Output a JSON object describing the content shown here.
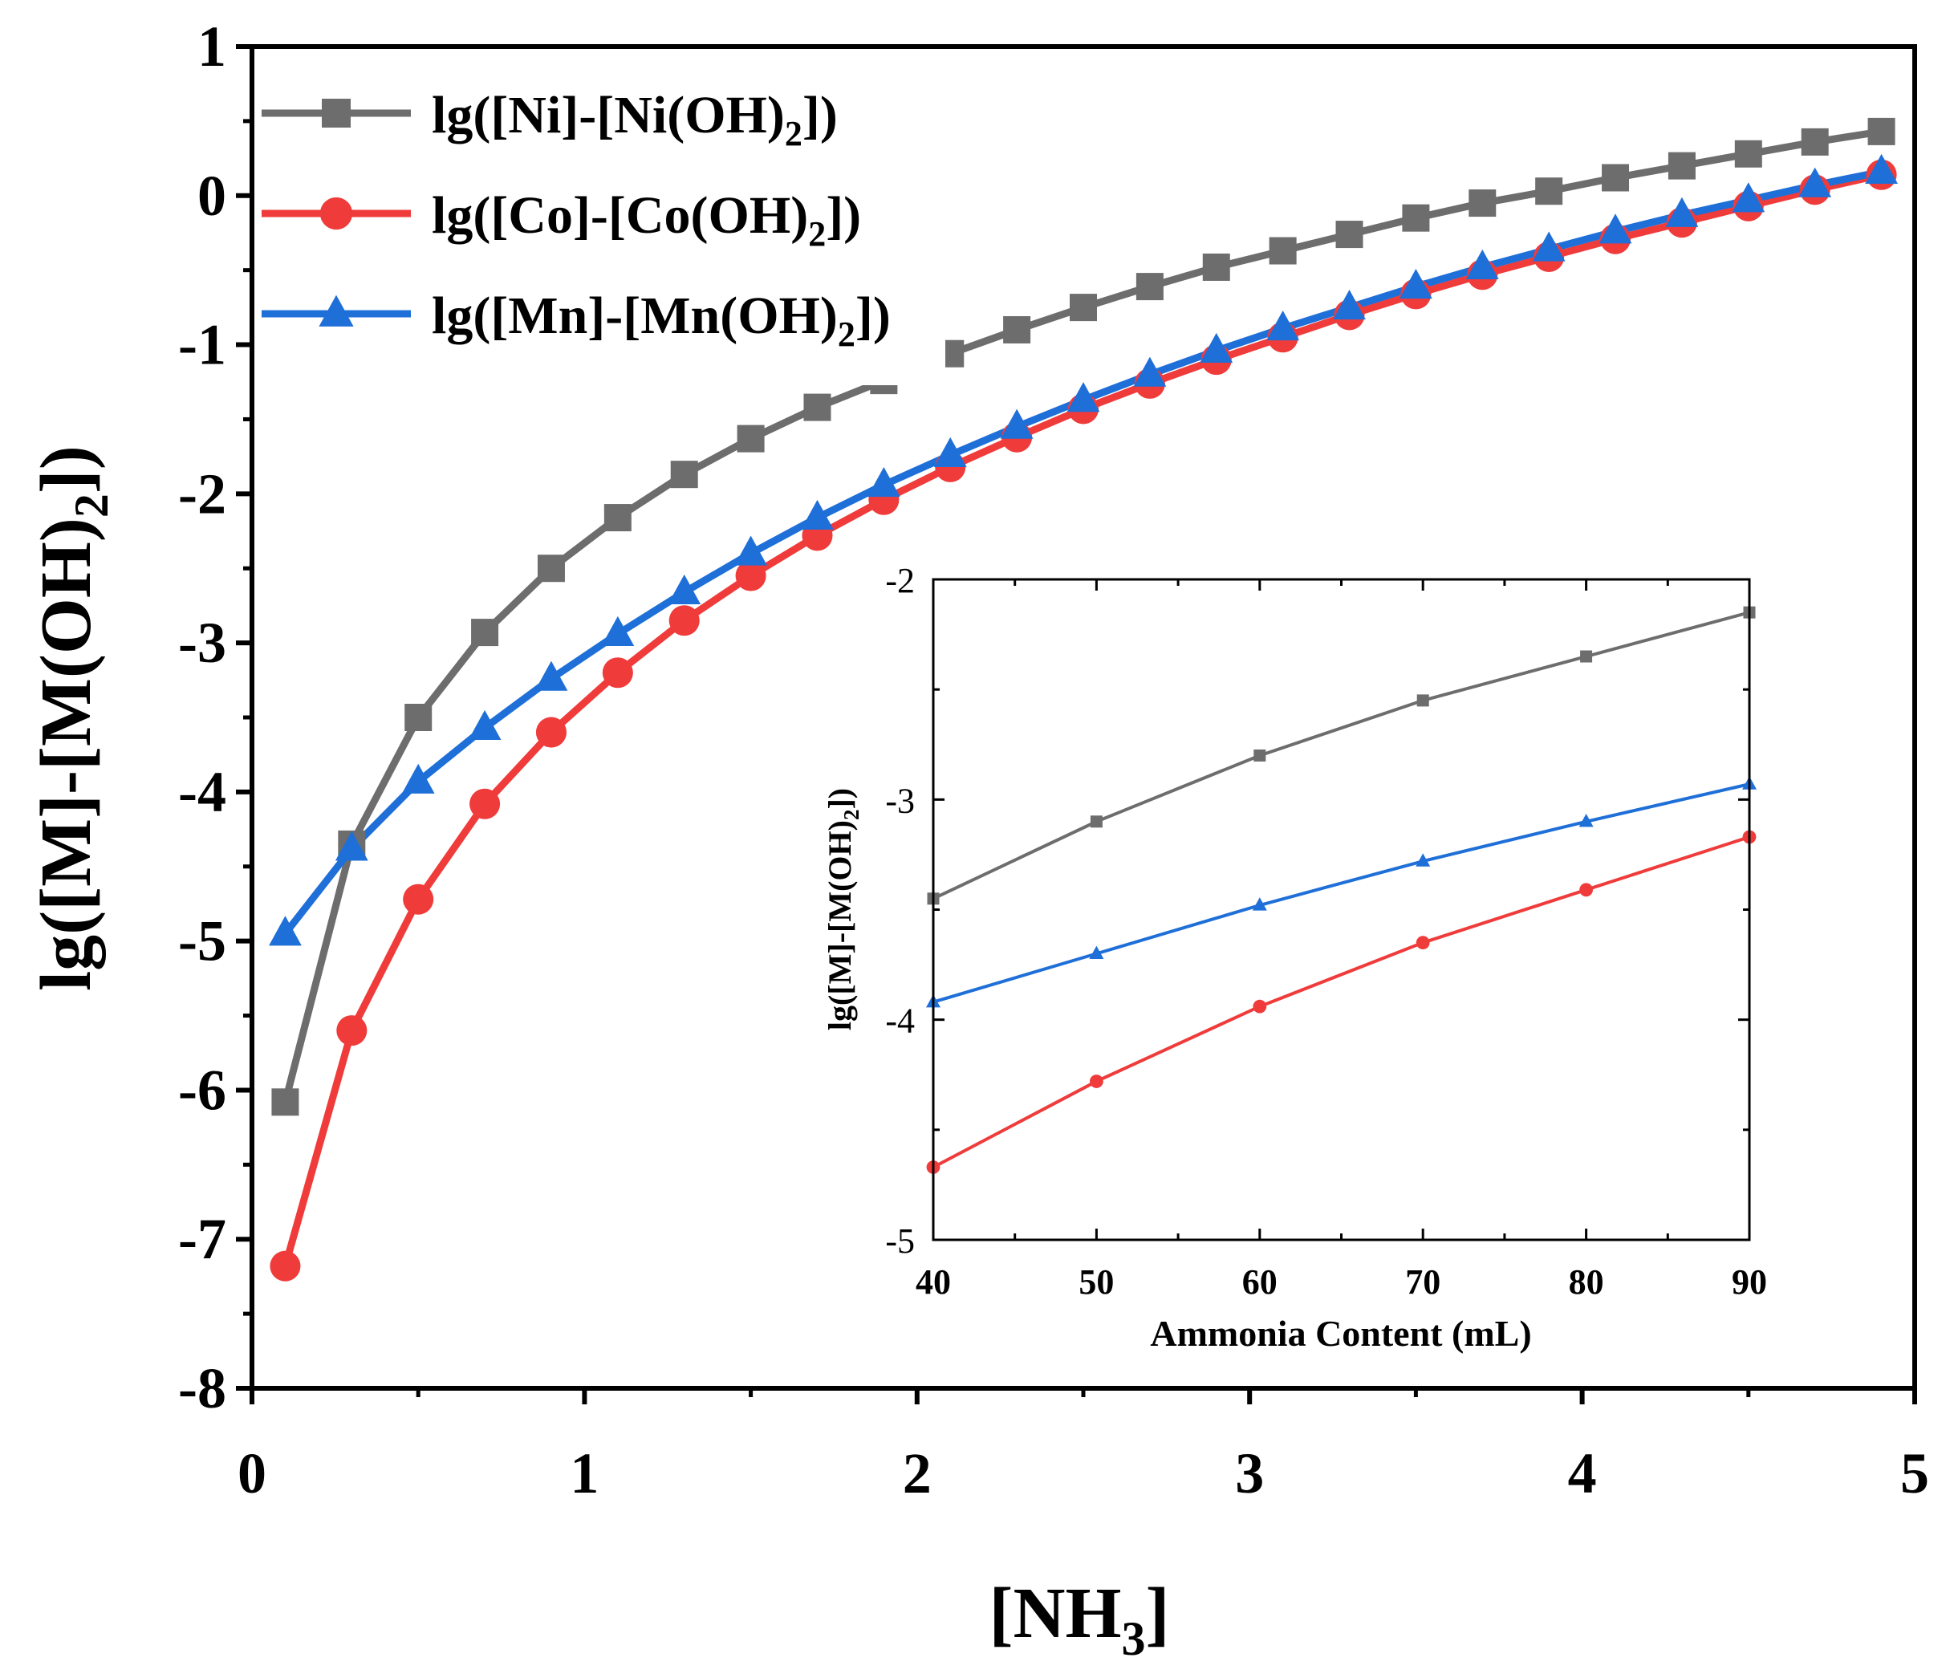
{
  "chart_data": [
    {
      "id": "main",
      "type": "line",
      "xlabel": "[NH",
      "xlabel_sub": "3",
      "xlabel_tail": "]",
      "ylabel_main": "lg([M]-[M(OH)",
      "ylabel_sub": "2",
      "ylabel_tail": "])",
      "xlim": [
        0,
        5
      ],
      "ylim": [
        -8,
        1
      ],
      "xticks": [
        0,
        1,
        2,
        3,
        4,
        5
      ],
      "xtick_labels": [
        "0",
        "1",
        "2",
        "3",
        "4",
        "5"
      ],
      "yticks": [
        -8,
        -7,
        -6,
        -5,
        -4,
        -3,
        -2,
        -1,
        0,
        1
      ],
      "ytick_labels": [
        "-8",
        "-7",
        "-6",
        "-5",
        "-4",
        "-3",
        "-2",
        "-1",
        "0",
        "1"
      ],
      "legend_position": "top-left",
      "series": [
        {
          "name": "lg([Ni]-[Ni(OH)2])",
          "label_main": "lg([Ni]-[Ni(OH)",
          "label_sub": "2",
          "label_tail": "])",
          "color": "#6d6d6d",
          "marker": "square",
          "x": [
            0.1,
            0.3,
            0.5,
            0.7,
            0.9,
            1.1,
            1.3,
            1.5,
            1.7,
            1.9,
            2.1,
            2.3,
            2.5,
            2.7,
            2.9,
            3.1,
            3.3,
            3.5,
            3.7,
            3.9,
            4.1,
            4.3,
            4.5,
            4.7,
            4.9
          ],
          "y": [
            -6.08,
            -4.35,
            -3.5,
            -2.93,
            -2.5,
            -2.16,
            -1.87,
            -1.63,
            -1.42,
            -1.24,
            -1.06,
            -0.9,
            -0.75,
            -0.61,
            -0.48,
            -0.37,
            -0.26,
            -0.15,
            -0.05,
            0.03,
            0.12,
            0.2,
            0.28,
            0.36,
            0.43
          ]
        },
        {
          "name": "lg([Co]-[Co(OH)2])",
          "label_main": "lg([Co]-[Co(OH)",
          "label_sub": "2",
          "label_tail": "])",
          "color": "#f03b3b",
          "marker": "circle",
          "x": [
            0.1,
            0.3,
            0.5,
            0.7,
            0.9,
            1.1,
            1.3,
            1.5,
            1.7,
            1.9,
            2.1,
            2.3,
            2.5,
            2.7,
            2.9,
            3.1,
            3.3,
            3.5,
            3.7,
            3.9,
            4.1,
            4.3,
            4.5,
            4.7,
            4.9
          ],
          "y": [
            -7.18,
            -5.6,
            -4.72,
            -4.08,
            -3.6,
            -3.2,
            -2.85,
            -2.55,
            -2.28,
            -2.04,
            -1.82,
            -1.62,
            -1.43,
            -1.26,
            -1.1,
            -0.95,
            -0.8,
            -0.66,
            -0.53,
            -0.41,
            -0.29,
            -0.18,
            -0.07,
            0.04,
            0.14
          ]
        },
        {
          "name": "lg([Mn]-[Mn(OH)2])",
          "label_main": "lg([Mn]-[Mn(OH)",
          "label_sub": "2",
          "label_tail": "])",
          "color": "#1f6fd8",
          "marker": "triangle",
          "x": [
            0.1,
            0.3,
            0.5,
            0.7,
            0.9,
            1.1,
            1.3,
            1.5,
            1.7,
            1.9,
            2.1,
            2.3,
            2.5,
            2.7,
            2.9,
            3.1,
            3.3,
            3.5,
            3.7,
            3.9,
            4.1,
            4.3,
            4.5,
            4.7,
            4.9
          ],
          "y": [
            -4.95,
            -4.38,
            -3.93,
            -3.57,
            -3.24,
            -2.94,
            -2.66,
            -2.4,
            -2.16,
            -1.94,
            -1.74,
            -1.55,
            -1.37,
            -1.2,
            -1.04,
            -0.89,
            -0.75,
            -0.61,
            -0.48,
            -0.36,
            -0.24,
            -0.13,
            -0.03,
            0.07,
            0.16
          ]
        }
      ]
    },
    {
      "id": "inset",
      "type": "line",
      "xlabel": "Ammonia Content (mL)",
      "ylabel_main": "lg([M]-[M(OH)",
      "ylabel_sub": "2",
      "ylabel_tail": "])",
      "xlim": [
        40,
        90
      ],
      "ylim": [
        -5,
        -2
      ],
      "xticks": [
        40,
        50,
        60,
        70,
        80,
        90
      ],
      "xtick_labels": [
        "40",
        "50",
        "60",
        "70",
        "80",
        "90"
      ],
      "yticks": [
        -5,
        -4,
        -3,
        -2
      ],
      "ytick_labels": [
        "-5",
        "-4",
        "-3",
        "-2"
      ],
      "series": [
        {
          "name": "lg([Ni]-[Ni(OH)2])",
          "color": "#6d6d6d",
          "marker": "square",
          "x": [
            40,
            50,
            60,
            70,
            80,
            90
          ],
          "y": [
            -3.45,
            -3.1,
            -2.8,
            -2.55,
            -2.35,
            -2.15
          ]
        },
        {
          "name": "lg([Co]-[Co(OH)2])",
          "color": "#f03b3b",
          "marker": "circle",
          "x": [
            40,
            50,
            60,
            70,
            80,
            90
          ],
          "y": [
            -4.67,
            -4.28,
            -3.94,
            -3.65,
            -3.41,
            -3.17
          ]
        },
        {
          "name": "lg([Mn]-[Mn(OH)2])",
          "color": "#1f6fd8",
          "marker": "triangle",
          "x": [
            40,
            50,
            60,
            70,
            80,
            90
          ],
          "y": [
            -3.92,
            -3.7,
            -3.48,
            -3.28,
            -3.1,
            -2.93
          ]
        }
      ]
    }
  ]
}
